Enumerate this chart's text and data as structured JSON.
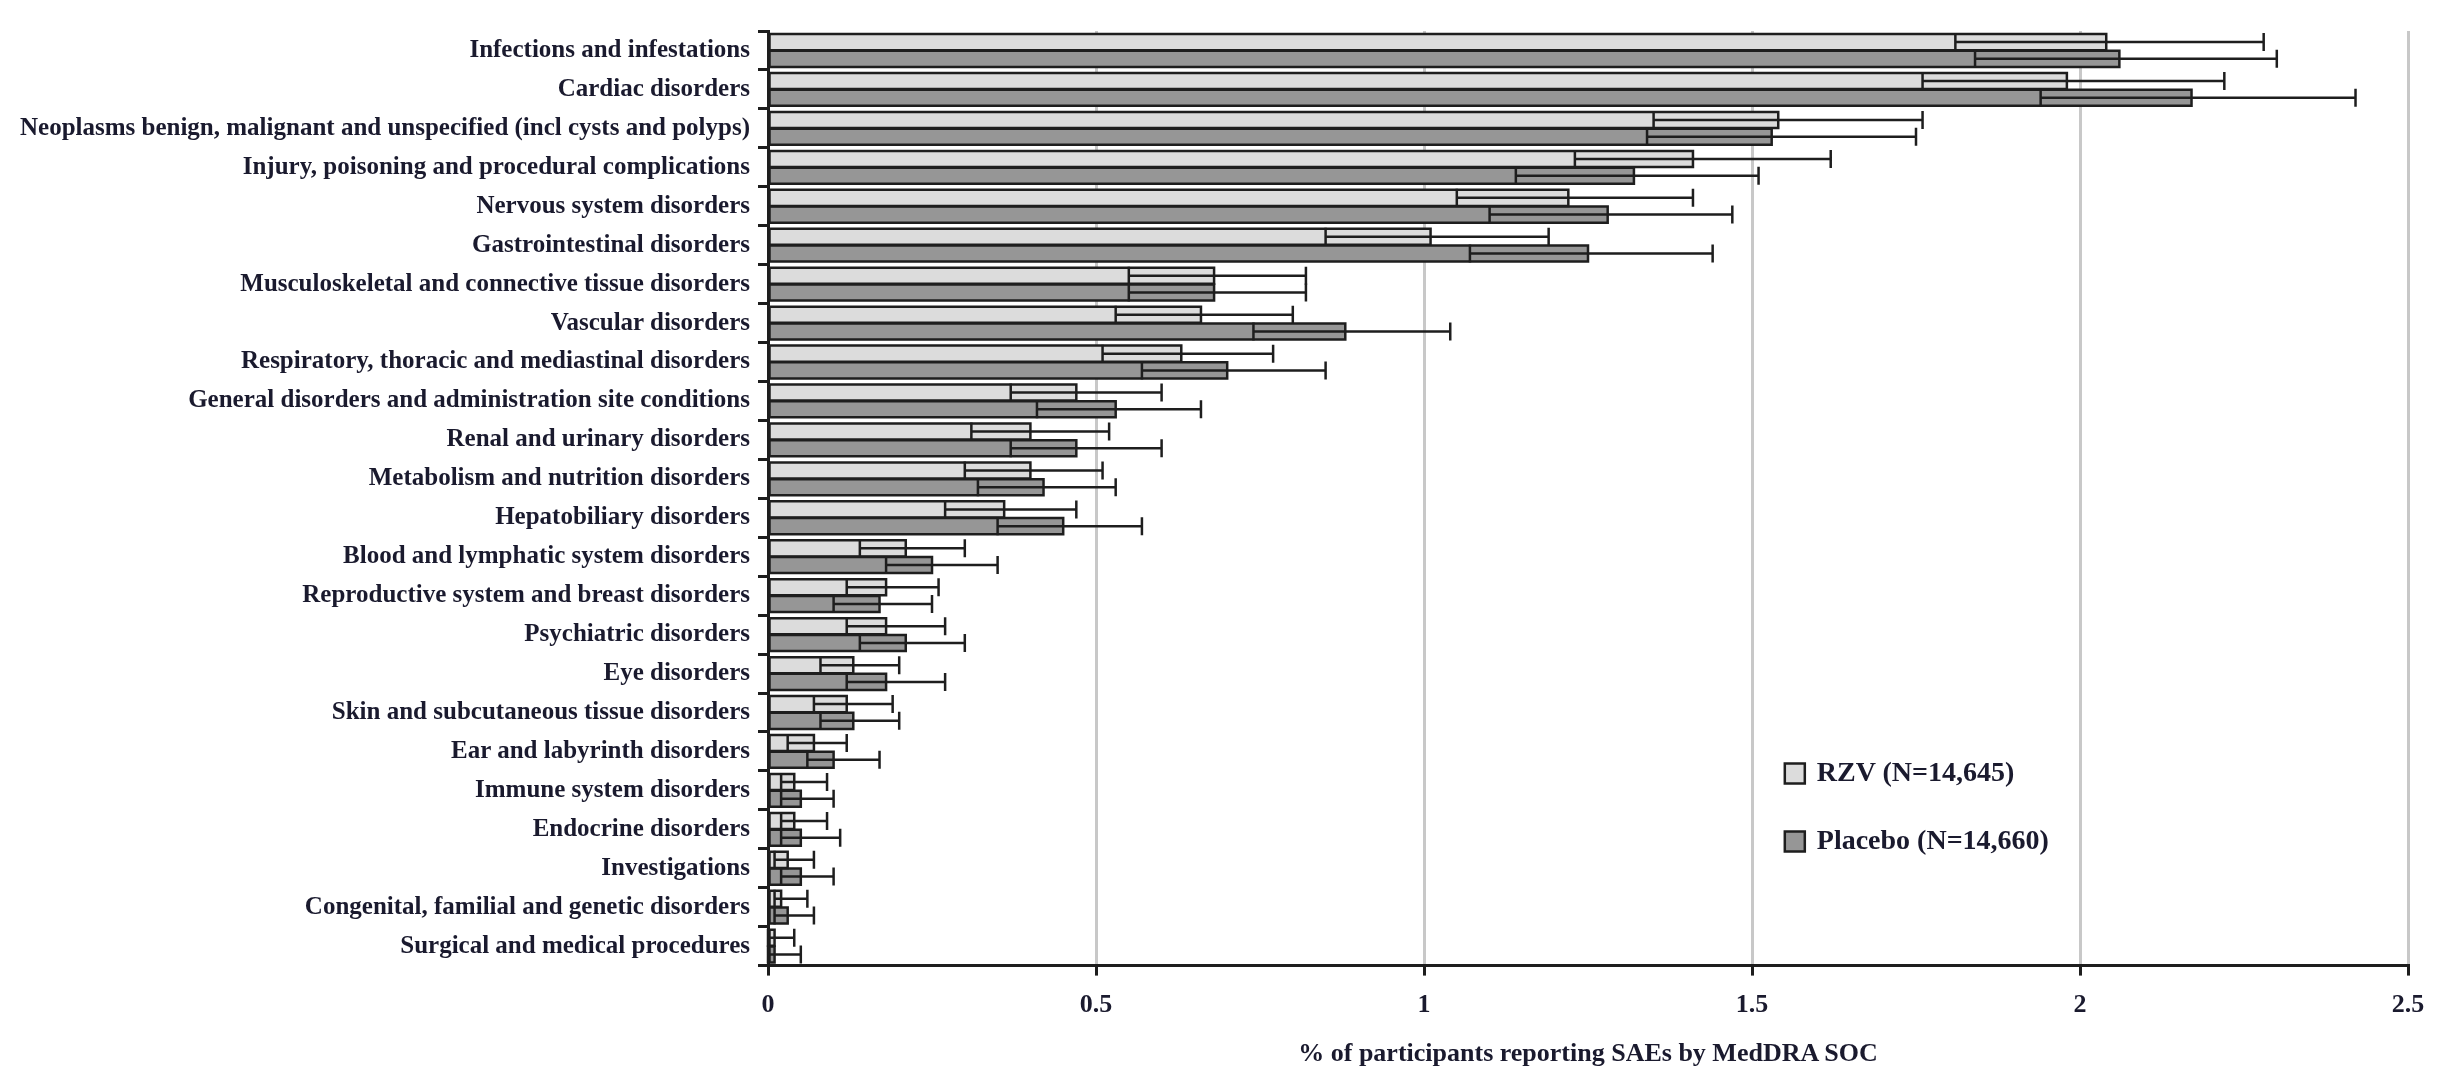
{
  "chart_data": {
    "type": "bar",
    "orientation": "horizontal",
    "xlabel": "% of participants reporting SAEs by MedDRA SOC",
    "categories": [
      "Infections and infestations",
      "Cardiac disorders",
      "Neoplasms benign, malignant and unspecified (incl cysts and polyps)",
      "Injury, poisoning and procedural complications",
      "Nervous system disorders",
      "Gastrointestinal disorders",
      "Musculoskeletal and connective tissue disorders",
      "Vascular disorders",
      "Respiratory, thoracic and mediastinal disorders",
      "General disorders and administration site conditions",
      "Renal and urinary disorders",
      "Metabolism and nutrition disorders",
      "Hepatobiliary disorders",
      "Blood and lymphatic system disorders",
      "Reproductive system and breast disorders",
      "Psychiatric disorders",
      "Eye disorders",
      "Skin and subcutaneous tissue disorders",
      "Ear and labyrinth disorders",
      "Immune system disorders",
      "Endocrine disorders",
      "Investigations",
      "Congenital, familial and genetic disorders",
      "Surgical and medical procedures"
    ],
    "series": [
      {
        "name": "RZV (N=14,645)",
        "color": "#dcdcdc",
        "values": [
          2.04,
          1.98,
          1.54,
          1.41,
          1.22,
          1.01,
          0.68,
          0.66,
          0.63,
          0.47,
          0.4,
          0.4,
          0.36,
          0.21,
          0.18,
          0.18,
          0.13,
          0.12,
          0.07,
          0.04,
          0.04,
          0.03,
          0.02,
          0.01
        ],
        "errors": [
          [
            1.81,
            2.28
          ],
          [
            1.76,
            2.22
          ],
          [
            1.35,
            1.76
          ],
          [
            1.23,
            1.62
          ],
          [
            1.05,
            1.41
          ],
          [
            0.85,
            1.19
          ],
          [
            0.55,
            0.82
          ],
          [
            0.53,
            0.8
          ],
          [
            0.51,
            0.77
          ],
          [
            0.37,
            0.6
          ],
          [
            0.31,
            0.52
          ],
          [
            0.3,
            0.51
          ],
          [
            0.27,
            0.47
          ],
          [
            0.14,
            0.3
          ],
          [
            0.12,
            0.26
          ],
          [
            0.12,
            0.27
          ],
          [
            0.08,
            0.2
          ],
          [
            0.07,
            0.19
          ],
          [
            0.03,
            0.12
          ],
          [
            0.02,
            0.09
          ],
          [
            0.02,
            0.09
          ],
          [
            0.01,
            0.07
          ],
          [
            0.01,
            0.06
          ],
          [
            0,
            0.04
          ]
        ]
      },
      {
        "name": "Placebo (N=14,660)",
        "color": "#969696",
        "values": [
          2.06,
          2.17,
          1.53,
          1.32,
          1.28,
          1.25,
          0.68,
          0.88,
          0.7,
          0.53,
          0.47,
          0.42,
          0.45,
          0.25,
          0.17,
          0.21,
          0.18,
          0.13,
          0.1,
          0.05,
          0.05,
          0.05,
          0.03,
          0.01
        ],
        "errors": [
          [
            1.84,
            2.3
          ],
          [
            1.94,
            2.42
          ],
          [
            1.34,
            1.75
          ],
          [
            1.14,
            1.51
          ],
          [
            1.1,
            1.47
          ],
          [
            1.07,
            1.44
          ],
          [
            0.55,
            0.82
          ],
          [
            0.74,
            1.04
          ],
          [
            0.57,
            0.85
          ],
          [
            0.41,
            0.66
          ],
          [
            0.37,
            0.6
          ],
          [
            0.32,
            0.53
          ],
          [
            0.35,
            0.57
          ],
          [
            0.18,
            0.35
          ],
          [
            0.1,
            0.25
          ],
          [
            0.14,
            0.3
          ],
          [
            0.12,
            0.27
          ],
          [
            0.08,
            0.2
          ],
          [
            0.06,
            0.17
          ],
          [
            0.02,
            0.1
          ],
          [
            0.02,
            0.11
          ],
          [
            0.02,
            0.1
          ],
          [
            0.01,
            0.07
          ],
          [
            0,
            0.05
          ]
        ]
      }
    ],
    "xlim": [
      0,
      2.5
    ],
    "xticks": [
      0,
      0.5,
      1,
      1.5,
      2,
      2.5
    ],
    "grid": "x",
    "legend": "bottom right"
  }
}
